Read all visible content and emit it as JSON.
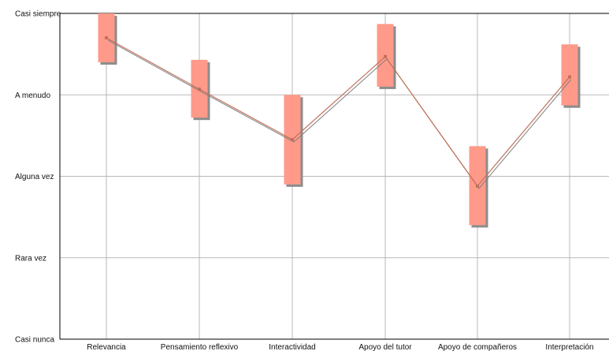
{
  "chart_data": {
    "type": "range-bar-line",
    "categories": [
      "Relevancia",
      "Pensamiento reflexivo",
      "Interactividad",
      "Apoyo del tutor",
      "Apoyo de compañeros",
      "Interpretación"
    ],
    "y_levels": [
      "Casi nunca",
      "Rara vez",
      "Alguna vez",
      "A menudo",
      "Casi siempre"
    ],
    "ylim": [
      1,
      5
    ],
    "series": [
      {
        "values": [
          4.7,
          4.07,
          3.45,
          4.47,
          2.88,
          4.22
        ],
        "low": [
          4.4,
          3.72,
          2.9,
          4.1,
          2.4,
          3.87
        ],
        "high": [
          5.0,
          4.43,
          4.0,
          4.87,
          3.37,
          4.62
        ]
      }
    ],
    "grid": true,
    "colors": {
      "bar": "#ff9a8a",
      "bar_shadow": "#8c8c8c",
      "line": "#c0705a",
      "line_shadow": "#7e7e7e",
      "grid": "#b8b8b8",
      "axis": "#000000"
    }
  }
}
